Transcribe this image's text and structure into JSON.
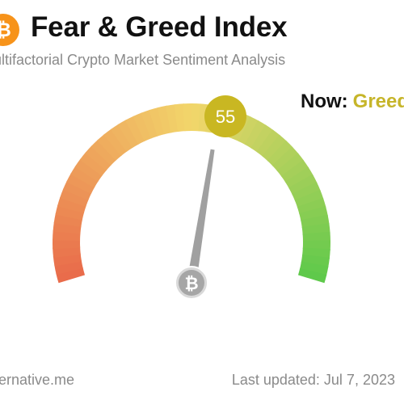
{
  "header": {
    "logo_icon": "bitcoin-icon",
    "logo_glyph": "₿",
    "title": "Fear & Greed Index",
    "subtitle": "ultifactorial Crypto Market Sentiment Analysis"
  },
  "now": {
    "label": "Now:",
    "classification": "Greed"
  },
  "gauge": {
    "value": 55,
    "value_label": "55",
    "min": 0,
    "max": 100,
    "center_icon": "bitcoin-icon",
    "center_glyph": "₿",
    "colors": {
      "fear": "#e96a4a",
      "neutral": "#f2d66b",
      "greed": "#5dc94a",
      "value_badge": "#c9b722",
      "needle": "#a0a0a0"
    }
  },
  "footer": {
    "source": "ernative.me",
    "updated": "Last updated: Jul 7, 2023"
  }
}
